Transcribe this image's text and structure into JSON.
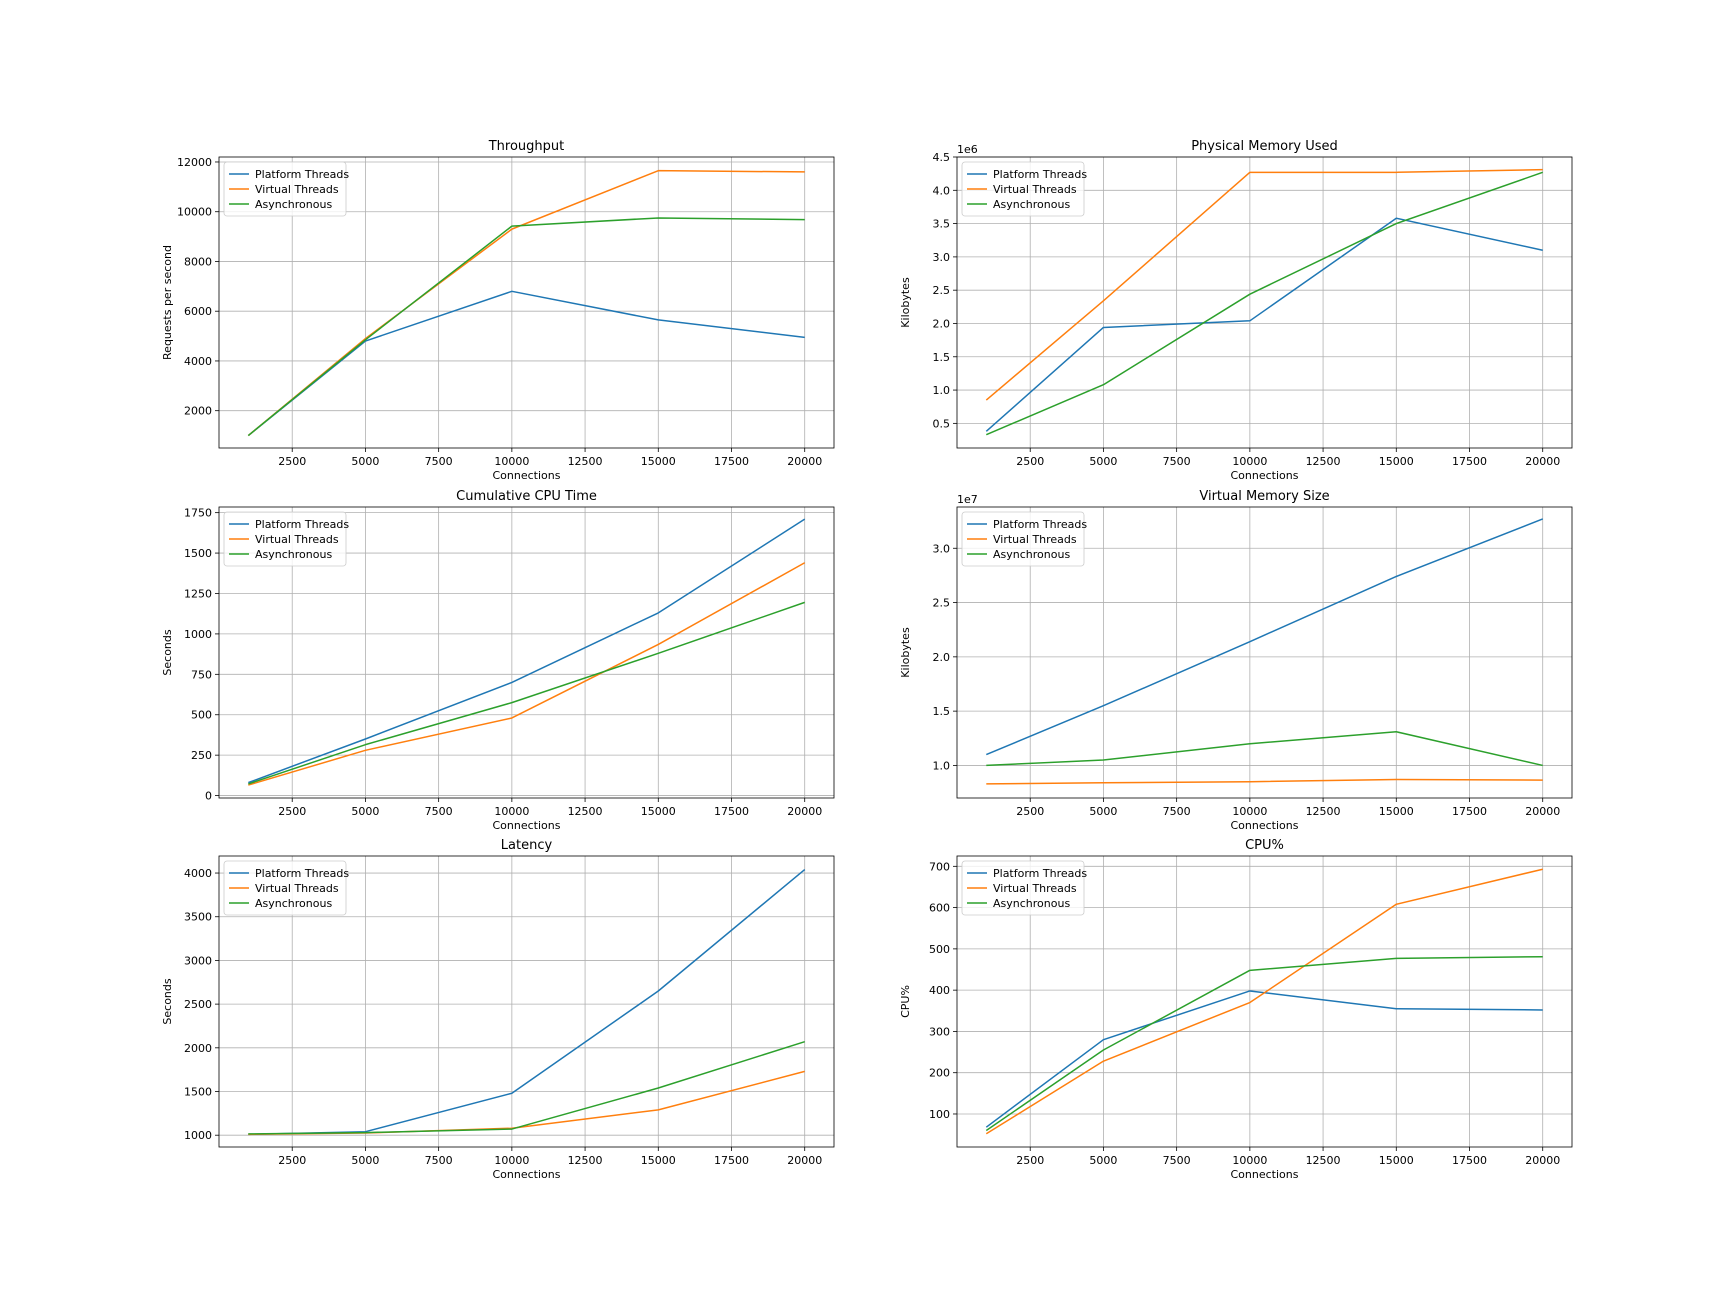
{
  "colors": {
    "platform": "#1f77b4",
    "virtual": "#ff7f0e",
    "async": "#2ca02c",
    "grid": "#b0b0b0",
    "axes": "#000000"
  },
  "chart_data": [
    {
      "type": "line",
      "title": "Throughput",
      "xlabel": "Connections",
      "ylabel": "Requests per second",
      "offset_text": "",
      "x": [
        1000,
        5000,
        10000,
        15000,
        20000
      ],
      "xlim": [
        0,
        21000
      ],
      "ylim": [
        500,
        12200
      ],
      "xticks": [
        2500,
        5000,
        7500,
        10000,
        12500,
        15000,
        17500,
        20000
      ],
      "yticks": [
        2000,
        4000,
        6000,
        8000,
        10000,
        12000
      ],
      "ytick_labels": [
        "2000",
        "4000",
        "6000",
        "8000",
        "10000",
        "12000"
      ],
      "grid": true,
      "legend": "upper left",
      "series": [
        {
          "name": "Platform Threads",
          "color_key": "platform",
          "values": [
            1000,
            4800,
            6800,
            5650,
            4950
          ]
        },
        {
          "name": "Virtual Threads",
          "color_key": "virtual",
          "values": [
            1000,
            4900,
            9300,
            11650,
            11600
          ]
        },
        {
          "name": "Asynchronous",
          "color_key": "async",
          "values": [
            1000,
            4850,
            9420,
            9750,
            9680
          ]
        }
      ]
    },
    {
      "type": "line",
      "title": "Physical Memory Used",
      "xlabel": "Connections",
      "ylabel": "Kilobytes",
      "offset_text": "1e6",
      "x": [
        1000,
        5000,
        10000,
        15000,
        20000
      ],
      "xlim": [
        0,
        21000
      ],
      "ylim": [
        0.13,
        4.5
      ],
      "xticks": [
        2500,
        5000,
        7500,
        10000,
        12500,
        15000,
        17500,
        20000
      ],
      "yticks": [
        0.5,
        1.0,
        1.5,
        2.0,
        2.5,
        3.0,
        3.5,
        4.0,
        4.5
      ],
      "ytick_labels": [
        "0.5",
        "1.0",
        "1.5",
        "2.0",
        "2.5",
        "3.0",
        "3.5",
        "4.0",
        "4.5"
      ],
      "grid": true,
      "legend": "upper left",
      "series": [
        {
          "name": "Platform Threads",
          "color_key": "platform",
          "values": [
            0.38,
            1.94,
            2.04,
            3.58,
            3.1
          ]
        },
        {
          "name": "Virtual Threads",
          "color_key": "virtual",
          "values": [
            0.85,
            2.34,
            4.27,
            4.27,
            4.31
          ]
        },
        {
          "name": "Asynchronous",
          "color_key": "async",
          "values": [
            0.33,
            1.08,
            2.44,
            3.5,
            4.27
          ]
        }
      ]
    },
    {
      "type": "line",
      "title": "Cumulative CPU Time",
      "xlabel": "Connections",
      "ylabel": "Seconds",
      "offset_text": "",
      "x": [
        1000,
        5000,
        10000,
        15000,
        20000
      ],
      "xlim": [
        0,
        21000
      ],
      "ylim": [
        -15,
        1785
      ],
      "xticks": [
        2500,
        5000,
        7500,
        10000,
        12500,
        15000,
        17500,
        20000
      ],
      "yticks": [
        0,
        250,
        500,
        750,
        1000,
        1250,
        1500,
        1750
      ],
      "ytick_labels": [
        "0",
        "250",
        "500",
        "750",
        "1000",
        "1250",
        "1500",
        "1750"
      ],
      "grid": true,
      "legend": "upper left",
      "series": [
        {
          "name": "Platform Threads",
          "color_key": "platform",
          "values": [
            80,
            350,
            700,
            1130,
            1710
          ]
        },
        {
          "name": "Virtual Threads",
          "color_key": "virtual",
          "values": [
            65,
            280,
            480,
            935,
            1440
          ]
        },
        {
          "name": "Asynchronous",
          "color_key": "async",
          "values": [
            72,
            315,
            575,
            880,
            1195
          ]
        }
      ]
    },
    {
      "type": "line",
      "title": "Virtual Memory Size",
      "xlabel": "Connections",
      "ylabel": "Kilobytes",
      "offset_text": "1e7",
      "x": [
        1000,
        5000,
        10000,
        15000,
        20000
      ],
      "xlim": [
        0,
        21000
      ],
      "ylim": [
        0.7,
        3.38
      ],
      "xticks": [
        2500,
        5000,
        7500,
        10000,
        12500,
        15000,
        17500,
        20000
      ],
      "yticks": [
        1.0,
        1.5,
        2.0,
        2.5,
        3.0
      ],
      "ytick_labels": [
        "1.0",
        "1.5",
        "2.0",
        "2.5",
        "3.0"
      ],
      "grid": true,
      "legend": "upper left",
      "series": [
        {
          "name": "Platform Threads",
          "color_key": "platform",
          "values": [
            1.1,
            1.55,
            2.14,
            2.74,
            3.27
          ]
        },
        {
          "name": "Virtual Threads",
          "color_key": "virtual",
          "values": [
            0.83,
            0.84,
            0.85,
            0.87,
            0.865
          ]
        },
        {
          "name": "Asynchronous",
          "color_key": "async",
          "values": [
            1.0,
            1.05,
            1.2,
            1.31,
            1.0
          ]
        }
      ]
    },
    {
      "type": "line",
      "title": "Latency",
      "xlabel": "Connections",
      "ylabel": "Seconds",
      "offset_text": "",
      "x": [
        1000,
        5000,
        10000,
        15000,
        20000
      ],
      "xlim": [
        0,
        21000
      ],
      "ylim": [
        865,
        4195
      ],
      "xticks": [
        2500,
        5000,
        7500,
        10000,
        12500,
        15000,
        17500,
        20000
      ],
      "yticks": [
        1000,
        1500,
        2000,
        2500,
        3000,
        3500,
        4000
      ],
      "ytick_labels": [
        "1000",
        "1500",
        "2000",
        "2500",
        "3000",
        "3500",
        "4000"
      ],
      "grid": true,
      "legend": "upper left",
      "series": [
        {
          "name": "Platform Threads",
          "color_key": "platform",
          "values": [
            1010,
            1040,
            1480,
            2650,
            4040
          ]
        },
        {
          "name": "Virtual Threads",
          "color_key": "virtual",
          "values": [
            1010,
            1025,
            1080,
            1290,
            1730
          ]
        },
        {
          "name": "Asynchronous",
          "color_key": "async",
          "values": [
            1015,
            1030,
            1070,
            1540,
            2070
          ]
        }
      ]
    },
    {
      "type": "line",
      "title": "CPU%",
      "xlabel": "Connections",
      "ylabel": "CPU%",
      "offset_text": "",
      "x": [
        1000,
        5000,
        10000,
        15000,
        20000
      ],
      "xlim": [
        0,
        21000
      ],
      "ylim": [
        20,
        725
      ],
      "xticks": [
        2500,
        5000,
        7500,
        10000,
        12500,
        15000,
        17500,
        20000
      ],
      "yticks": [
        100,
        200,
        300,
        400,
        500,
        600,
        700
      ],
      "ytick_labels": [
        "100",
        "200",
        "300",
        "400",
        "500",
        "600",
        "700"
      ],
      "grid": true,
      "legend": "upper left",
      "series": [
        {
          "name": "Platform Threads",
          "color_key": "platform",
          "values": [
            68,
            280,
            398,
            355,
            352
          ]
        },
        {
          "name": "Virtual Threads",
          "color_key": "virtual",
          "values": [
            52,
            228,
            370,
            608,
            693
          ]
        },
        {
          "name": "Asynchronous",
          "color_key": "async",
          "values": [
            60,
            255,
            448,
            477,
            481
          ]
        }
      ]
    }
  ]
}
